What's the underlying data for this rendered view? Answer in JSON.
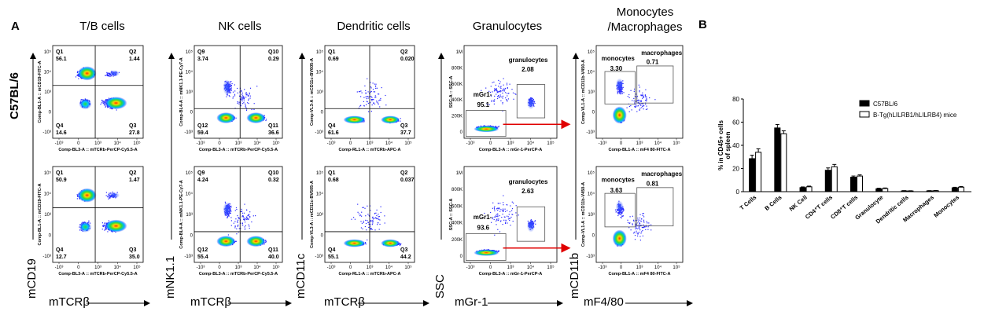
{
  "panel_labels": {
    "a": "A",
    "b": "B"
  },
  "row_label": "C57BL/6",
  "columns": [
    {
      "title": "T/B cells"
    },
    {
      "title": "NK cells"
    },
    {
      "title": "Dendritic cells"
    },
    {
      "title": "Granulocytes"
    },
    {
      "title_line1": "Monocytes",
      "title_line2": "/Macrophages"
    }
  ],
  "marker_x": [
    "mTCRβ",
    "mTCRβ",
    "mTCRβ",
    "mGr-1",
    "mF4/80"
  ],
  "marker_y": [
    "mCD19",
    "mNK1.1",
    "mCD11c",
    "SSC",
    "mCD11b"
  ],
  "flow_plots": [
    {
      "id": "tb-top",
      "xlabel": "Comp-BL3-A :: mTCRb-PerCP-Cy5.5-A",
      "ylabel": "Comp-BL1-A :: mCD19-FITC-A",
      "gates": [
        {
          "name": "Q1",
          "value": "56.1"
        },
        {
          "name": "Q2",
          "value": "1.44"
        },
        {
          "name": "Q3",
          "value": "27.8"
        },
        {
          "name": "Q4",
          "value": "14.6"
        }
      ]
    },
    {
      "id": "tb-bottom",
      "xlabel": "Comp-BL3-A :: mTCRb-PerCP-Cy5.5-A",
      "ylabel": "Comp-BL1-A :: mCD19-FITC-A",
      "gates": [
        {
          "name": "Q1",
          "value": "50.9"
        },
        {
          "name": "Q2",
          "value": "1.47"
        },
        {
          "name": "Q3",
          "value": "35.0"
        },
        {
          "name": "Q4",
          "value": "12.7"
        }
      ]
    },
    {
      "id": "nk-top",
      "xlabel": "Comp-BL3-A :: mTCRb-PerCP-Cy5.5-A",
      "ylabel": "Comp-BL4-A :: mNK1.1-PE-Cy7-A",
      "gates": [
        {
          "name": "Q9",
          "value": "3.74"
        },
        {
          "name": "Q10",
          "value": "0.29"
        },
        {
          "name": "Q11",
          "value": "36.6"
        },
        {
          "name": "Q12",
          "value": "59.4"
        }
      ]
    },
    {
      "id": "nk-bottom",
      "xlabel": "Comp-BL3-A :: mTCRb-PerCP-Cy5.5-A",
      "ylabel": "Comp-BL4-A :: mNK1.1-PE-Cy7-A",
      "gates": [
        {
          "name": "Q9",
          "value": "4.24"
        },
        {
          "name": "Q10",
          "value": "0.32"
        },
        {
          "name": "Q11",
          "value": "40.0"
        },
        {
          "name": "Q12",
          "value": "55.4"
        }
      ]
    },
    {
      "id": "dc-top",
      "xlabel": "Comp-RL1-A :: mTCRb-APC-A",
      "ylabel": "Comp-VL3-A :: mCD11c-BV605-A",
      "gates": [
        {
          "name": "Q1",
          "value": "0.69"
        },
        {
          "name": "Q2",
          "value": "0.020"
        },
        {
          "name": "Q3",
          "value": "37.7"
        },
        {
          "name": "Q4",
          "value": "61.6"
        }
      ]
    },
    {
      "id": "dc-bottom",
      "xlabel": "Comp-RL1-A :: mTCRb-APC-A",
      "ylabel": "Comp-VL3-A :: mCD11c-BV605-A",
      "gates": [
        {
          "name": "Q1",
          "value": "0.68"
        },
        {
          "name": "Q2",
          "value": "0.037"
        },
        {
          "name": "Q3",
          "value": "44.2"
        },
        {
          "name": "Q4",
          "value": "55.1"
        }
      ]
    },
    {
      "id": "gr-top",
      "xlabel": "Comp-BL3-A :: mGr-1-PerCP-A",
      "ylabel": "SSC-A :: SSC-A",
      "gates": [
        {
          "name": "granulocytes",
          "value": "2.08"
        },
        {
          "name": "mGr1-",
          "value": "95.1"
        }
      ]
    },
    {
      "id": "gr-bottom",
      "xlabel": "Comp-BL3-A :: mGr-1-PerCP-A",
      "ylabel": "SSC-A :: SSC-A",
      "gates": [
        {
          "name": "granulocytes",
          "value": "2.63"
        },
        {
          "name": "mGr1-",
          "value": "93.6"
        }
      ]
    },
    {
      "id": "mo-top",
      "xlabel": "Comp-BL1-A :: mF4 80-FITC-A",
      "ylabel": "Comp-VL1-A :: mCD11b-V450-A",
      "gates": [
        {
          "name": "monocytes",
          "value": "3.30"
        },
        {
          "name": "macrophages",
          "value": "0.71"
        }
      ]
    },
    {
      "id": "mo-bottom",
      "xlabel": "Comp-BL1-A :: mF4 80-FITC-A",
      "ylabel": "Comp-VL1-A :: mCD11b-V450-A",
      "gates": [
        {
          "name": "monocytes",
          "value": "3.63"
        },
        {
          "name": "macrophages",
          "value": "0.81"
        }
      ]
    }
  ],
  "log_ticks": [
    "0",
    "10³",
    "10⁴",
    "10⁵"
  ],
  "log_ticks_neg": [
    "-10³",
    "0",
    "10³",
    "10⁴",
    "10⁵"
  ],
  "ssc_ticks": [
    "0",
    "200K",
    "400K",
    "600K",
    "800K",
    "1M"
  ],
  "chart_data": {
    "type": "bar",
    "ylabel_line1": "% in CD45+ cells",
    "ylabel_line2": "of spleen",
    "ylim": [
      0,
      80
    ],
    "yticks": [
      0,
      20,
      40,
      60,
      80
    ],
    "categories": [
      "T Cells",
      "B Cells",
      "NK Cell",
      "CD4⁺T cells",
      "CD8⁺T cells",
      "Granulocyte",
      "Dendritic cells",
      "Macrophages",
      "Monocytes"
    ],
    "series": [
      {
        "name": "C57BL/6",
        "color": "#000000",
        "values": [
          28.5,
          55,
          3.5,
          18.5,
          12.5,
          2.5,
          0.7,
          0.7,
          3.3
        ],
        "errors": [
          3,
          3,
          0.6,
          2,
          1,
          0.5,
          0.2,
          0.2,
          0.5
        ]
      },
      {
        "name": "B-Tg(hLILRB1/hLILRB4) mice",
        "color": "#ffffff",
        "values": [
          34,
          50,
          4.2,
          21.5,
          13.5,
          2.7,
          0.6,
          0.8,
          3.9
        ],
        "errors": [
          3,
          2.5,
          0.6,
          2,
          1,
          0.5,
          0.2,
          0.2,
          0.5
        ]
      }
    ],
    "legend_position": "top-right"
  }
}
